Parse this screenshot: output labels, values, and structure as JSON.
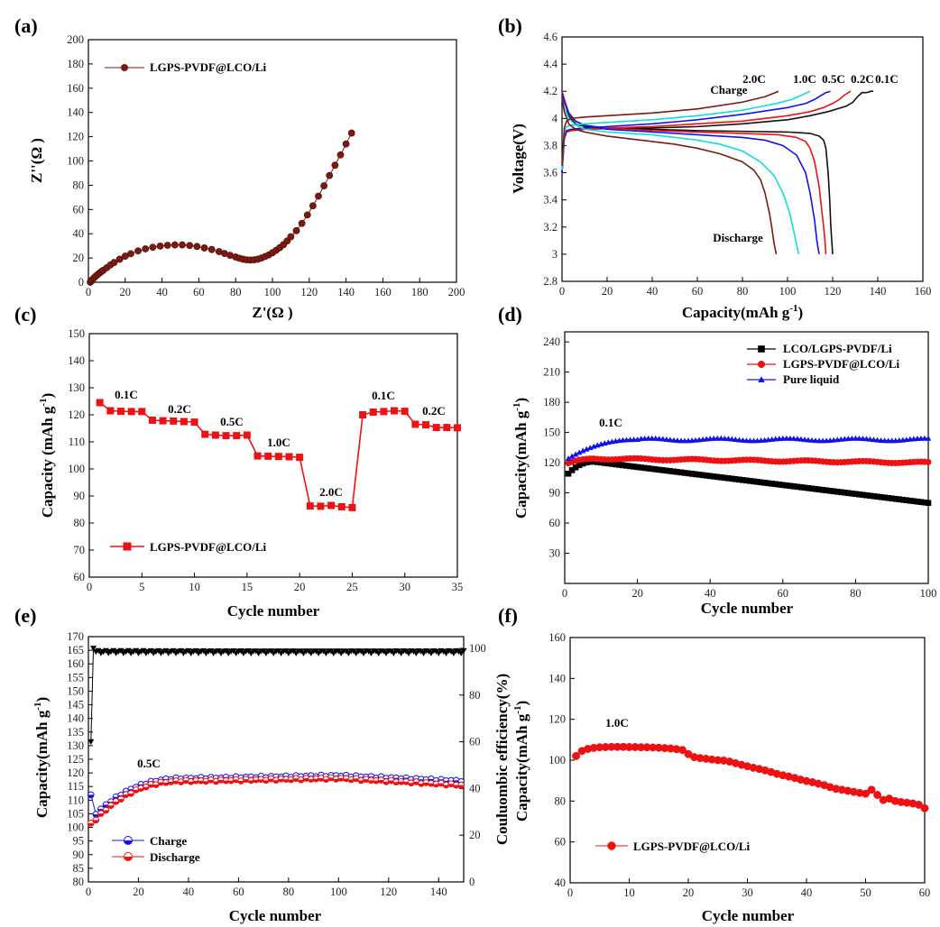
{
  "figure": {
    "panel_labels": [
      "(a)",
      "(b)",
      "(c)",
      "(d)",
      "(e)",
      "(f)"
    ]
  },
  "chart_data": [
    {
      "id": "a",
      "type": "scatter",
      "xlabel": "Z'(Ω )",
      "ylabel": "Z''(Ω )",
      "xlim": [
        0,
        200
      ],
      "ylim": [
        0,
        200
      ],
      "xticks": [
        0,
        20,
        40,
        60,
        80,
        100,
        120,
        140,
        160,
        180,
        200
      ],
      "yticks": [
        0,
        20,
        40,
        60,
        80,
        100,
        120,
        140,
        160,
        180,
        200
      ],
      "legend_position": "top-left",
      "series": [
        {
          "name": "LGPS-PVDF@LCO/Li",
          "color": "#7a1a12",
          "marker": "circle",
          "x": [
            1,
            1.5,
            2,
            3,
            4,
            5,
            6,
            7,
            8,
            10,
            12,
            14,
            17,
            20,
            23,
            27,
            31,
            35,
            39,
            43,
            47,
            51,
            55,
            59,
            63,
            67,
            71,
            74,
            77,
            80,
            82,
            84,
            86,
            88,
            90,
            92,
            94,
            96,
            98,
            100,
            102,
            104,
            106,
            108,
            110,
            113,
            116,
            119,
            122,
            125,
            128,
            131,
            134,
            137,
            140,
            143
          ],
          "y": [
            0,
            0.8,
            2,
            3.5,
            5,
            6.3,
            7.5,
            8.7,
            9.8,
            12,
            14.3,
            16.3,
            19,
            21.5,
            23.5,
            25.8,
            27.5,
            28.8,
            29.8,
            30.5,
            30.8,
            30.8,
            30.3,
            29.5,
            28.3,
            27,
            25.3,
            23.7,
            22.2,
            20.8,
            19.8,
            19,
            18.5,
            18.3,
            18.5,
            19,
            20,
            21.2,
            22.5,
            24.3,
            26.3,
            28.5,
            31,
            34,
            37.5,
            42.5,
            48.5,
            55.5,
            63,
            71,
            79.5,
            88,
            96.5,
            105,
            114,
            123
          ]
        }
      ]
    },
    {
      "id": "b",
      "type": "line",
      "xlabel": "Capacity(mAh g-1)",
      "ylabel": "Voltage(V)",
      "xlim": [
        0,
        160
      ],
      "ylim": [
        2.8,
        4.6
      ],
      "xticks": [
        0,
        20,
        40,
        60,
        80,
        100,
        120,
        140,
        160
      ],
      "yticks": [
        2.8,
        3.0,
        3.2,
        3.4,
        3.6,
        3.8,
        4.0,
        4.2,
        4.4,
        4.6
      ],
      "annotations": [
        "Charge",
        "Discharge",
        "2.0C",
        "1.0C",
        "0.5C",
        "0.2C",
        "0.1C"
      ],
      "series": [
        {
          "name": "0.1C",
          "color": "#111111",
          "charge_x": [
            0,
            1,
            2,
            4,
            10,
            20,
            40,
            60,
            80,
            100,
            110,
            118,
            122,
            126,
            129,
            131,
            133,
            135,
            137,
            138
          ],
          "charge_y": [
            3.6,
            3.85,
            3.9,
            3.91,
            3.92,
            3.925,
            3.93,
            3.94,
            3.96,
            3.99,
            4.02,
            4.05,
            4.07,
            4.09,
            4.12,
            4.16,
            4.19,
            4.19,
            4.2,
            4.2
          ],
          "discharge_x": [
            0,
            1,
            3,
            6,
            10,
            20,
            40,
            60,
            80,
            100,
            110,
            114,
            116,
            117,
            118,
            118.7,
            119.2,
            119.6,
            120
          ],
          "discharge_y": [
            4.2,
            4.14,
            4.02,
            3.96,
            3.94,
            3.93,
            3.92,
            3.91,
            3.905,
            3.9,
            3.89,
            3.87,
            3.84,
            3.78,
            3.6,
            3.4,
            3.2,
            3.1,
            3.0
          ]
        },
        {
          "name": "0.2C",
          "color": "#ee1111",
          "charge_x": [
            0,
            1,
            2,
            4,
            10,
            20,
            40,
            60,
            80,
            100,
            110,
            116,
            120,
            123,
            125,
            127,
            128
          ],
          "charge_y": [
            3.6,
            3.85,
            3.9,
            3.91,
            3.92,
            3.93,
            3.94,
            3.96,
            3.98,
            4.02,
            4.05,
            4.08,
            4.11,
            4.14,
            4.17,
            4.19,
            4.2
          ],
          "discharge_x": [
            0,
            1,
            3,
            6,
            10,
            20,
            40,
            60,
            80,
            96,
            104,
            108,
            110,
            112,
            114,
            115,
            116,
            116.6,
            117
          ],
          "discharge_y": [
            4.2,
            4.14,
            4.04,
            3.98,
            3.95,
            3.93,
            3.91,
            3.9,
            3.89,
            3.88,
            3.86,
            3.83,
            3.78,
            3.68,
            3.5,
            3.35,
            3.2,
            3.1,
            3.0
          ]
        },
        {
          "name": "0.5C",
          "color": "#1111ee",
          "charge_x": [
            0,
            1,
            2,
            4,
            10,
            20,
            40,
            60,
            80,
            100,
            108,
            112,
            115,
            117,
            119
          ],
          "charge_y": [
            3.6,
            3.86,
            3.91,
            3.92,
            3.93,
            3.94,
            3.96,
            3.99,
            4.03,
            4.08,
            4.11,
            4.14,
            4.17,
            4.19,
            4.2
          ],
          "discharge_x": [
            0,
            1,
            3,
            6,
            10,
            20,
            40,
            60,
            80,
            90,
            98,
            104,
            108,
            110,
            112,
            113,
            114
          ],
          "discharge_y": [
            4.18,
            4.12,
            4.04,
            3.98,
            3.95,
            3.92,
            3.9,
            3.88,
            3.86,
            3.84,
            3.8,
            3.73,
            3.6,
            3.45,
            3.25,
            3.1,
            3.0
          ]
        },
        {
          "name": "1.0C",
          "color": "#11dddd",
          "charge_x": [
            0,
            1,
            2,
            4,
            10,
            20,
            40,
            60,
            80,
            95,
            102,
            106,
            110
          ],
          "charge_y": [
            3.62,
            3.9,
            3.94,
            3.95,
            3.96,
            3.97,
            3.99,
            4.02,
            4.06,
            4.11,
            4.14,
            4.17,
            4.2
          ],
          "discharge_x": [
            0,
            1,
            3,
            6,
            10,
            20,
            30,
            40,
            50,
            60,
            70,
            80,
            88,
            94,
            98,
            101,
            103,
            104,
            105
          ],
          "discharge_y": [
            4.15,
            4.08,
            4.0,
            3.95,
            3.92,
            3.9,
            3.89,
            3.88,
            3.86,
            3.84,
            3.81,
            3.76,
            3.68,
            3.58,
            3.45,
            3.3,
            3.15,
            3.07,
            3.0
          ]
        },
        {
          "name": "2.0C",
          "color": "#7a1a12",
          "charge_x": [
            0,
            1,
            2,
            4,
            10,
            20,
            40,
            60,
            80,
            90,
            96
          ],
          "charge_y": [
            3.65,
            3.93,
            3.98,
            4.0,
            4.01,
            4.02,
            4.04,
            4.07,
            4.12,
            4.16,
            4.2
          ],
          "discharge_x": [
            0,
            1,
            3,
            6,
            10,
            20,
            30,
            40,
            50,
            60,
            70,
            80,
            85,
            88,
            90,
            92,
            93,
            94,
            95
          ],
          "discharge_y": [
            4.15,
            4.05,
            3.96,
            3.92,
            3.9,
            3.87,
            3.85,
            3.83,
            3.81,
            3.78,
            3.74,
            3.68,
            3.62,
            3.55,
            3.45,
            3.3,
            3.2,
            3.08,
            3.0
          ]
        }
      ]
    },
    {
      "id": "c",
      "type": "scatter",
      "xlabel": "Cycle number",
      "ylabel": "Capacity (mAh g-1)",
      "xlim": [
        0,
        35
      ],
      "ylim": [
        60,
        150
      ],
      "xticks": [
        0,
        5,
        10,
        15,
        20,
        25,
        30,
        35
      ],
      "yticks": [
        60,
        70,
        80,
        90,
        100,
        110,
        120,
        130,
        140,
        150
      ],
      "legend_position": "bottom-left",
      "annotations": [
        "0.1C",
        "0.2C",
        "0.5C",
        "1.0C",
        "2.0C",
        "0.1C",
        "0.2C"
      ],
      "series": [
        {
          "name": "LGPS-PVDF@LCO/Li",
          "color": "#ee1111",
          "marker": "square",
          "x": [
            1,
            2,
            3,
            4,
            5,
            6,
            7,
            8,
            9,
            10,
            11,
            12,
            13,
            14,
            15,
            16,
            17,
            18,
            19,
            20,
            21,
            22,
            23,
            24,
            25,
            26,
            27,
            28,
            29,
            30,
            31,
            32,
            33,
            34,
            35
          ],
          "y": [
            124.5,
            121.5,
            121.3,
            121.2,
            121.2,
            118,
            117.8,
            117.7,
            117.5,
            117.3,
            112.8,
            112.5,
            112.3,
            112.3,
            112.5,
            104.8,
            104.7,
            104.6,
            104.5,
            104.3,
            86.3,
            86.2,
            86.5,
            86,
            85.7,
            120,
            121,
            121.2,
            121.5,
            121.3,
            116.5,
            116.3,
            115.3,
            115.3,
            115.2
          ]
        }
      ]
    },
    {
      "id": "d",
      "type": "scatter",
      "xlabel": "Cycle number",
      "ylabel": "Capacity(mAh g-1)",
      "xlim": [
        0,
        100
      ],
      "ylim": [
        0,
        250
      ],
      "xticks": [
        0,
        20,
        40,
        60,
        80,
        100
      ],
      "yticks": [
        30,
        60,
        90,
        120,
        150,
        180,
        210,
        240
      ],
      "legend_position": "top-right",
      "annotations": [
        "0.1C"
      ],
      "series": [
        {
          "name": "LCO/LGPS-PVDF/Li",
          "color": "#000000",
          "marker": "square",
          "start": 105,
          "peak": 121,
          "peak_at": 8,
          "end": 80
        },
        {
          "name": "LGPS-PVDF@LCO/Li",
          "color": "#ee1111",
          "marker": "circle",
          "start": 118,
          "peak": 124,
          "peak_at": 8,
          "end": 119
        },
        {
          "name": "Pure liquid",
          "color": "#1111ee",
          "marker": "triangle",
          "start": 122,
          "peak": 143,
          "peak_at": 20,
          "end": 143
        }
      ]
    },
    {
      "id": "e",
      "type": "scatter",
      "xlabel": "Cycle number",
      "ylabel": "Capacity(mAh g-1)",
      "y2label": "Couluombic efficiency(%)",
      "xlim": [
        0,
        150
      ],
      "ylim": [
        80,
        170
      ],
      "y2lim": [
        0,
        105
      ],
      "xticks": [
        0,
        20,
        40,
        60,
        80,
        100,
        120,
        140
      ],
      "yticks": [
        80,
        85,
        90,
        95,
        100,
        105,
        110,
        115,
        120,
        125,
        130,
        135,
        140,
        145,
        150,
        155,
        160,
        165,
        170
      ],
      "y2ticks": [
        0,
        20,
        40,
        60,
        80,
        100
      ],
      "legend_position": "bottom-left",
      "annotations": [
        "0.5C"
      ],
      "series": [
        {
          "name": "Charge",
          "color": "#1111ee",
          "marker": "half-circle",
          "start": 115,
          "dip": 105,
          "plateau": 119,
          "end": 117
        },
        {
          "name": "Discharge",
          "color": "#ee1111",
          "marker": "half-circle",
          "start": 100.5,
          "dip": 103,
          "plateau": 118,
          "end": 115.5
        },
        {
          "name": "Coulombic efficiency",
          "color": "#000000",
          "marker": "triangle-down",
          "axis": "right",
          "start": 60,
          "plateau": 98.5
        }
      ]
    },
    {
      "id": "f",
      "type": "scatter",
      "xlabel": "Cycle number",
      "ylabel": "Capacity(mAh g-1)",
      "xlim": [
        0,
        60
      ],
      "ylim": [
        40,
        160
      ],
      "xticks": [
        0,
        10,
        20,
        30,
        40,
        50,
        60
      ],
      "yticks": [
        40,
        60,
        80,
        100,
        120,
        140,
        160
      ],
      "legend_position": "bottom-left",
      "annotations": [
        "1.0C"
      ],
      "series": [
        {
          "name": "LGPS-PVDF@LCO/Li",
          "color": "#ee1111",
          "marker": "circle",
          "x": [
            1,
            2,
            3,
            4,
            5,
            6,
            7,
            8,
            9,
            10,
            11,
            12,
            13,
            14,
            15,
            16,
            17,
            18,
            19,
            20,
            21,
            22,
            23,
            24,
            25,
            26,
            27,
            28,
            29,
            30,
            31,
            32,
            33,
            34,
            35,
            36,
            37,
            38,
            39,
            40,
            41,
            42,
            43,
            44,
            45,
            46,
            47,
            48,
            49,
            50,
            51,
            52,
            53,
            54,
            55,
            56,
            57,
            58,
            59,
            60
          ],
          "y": [
            102,
            104.5,
            105.5,
            106,
            106.3,
            106.4,
            106.5,
            106.5,
            106.5,
            106.4,
            106.4,
            106.3,
            106.3,
            106.2,
            106.1,
            105.9,
            105.7,
            105.4,
            105,
            103,
            101.5,
            101,
            100.7,
            100.3,
            100,
            99.8,
            99.3,
            98.5,
            97.7,
            97,
            96.3,
            95.7,
            95,
            94.2,
            93.3,
            92.6,
            92,
            91.3,
            90.5,
            89.8,
            89.2,
            88.5,
            87.8,
            86.8,
            86,
            85.5,
            85,
            84.5,
            84,
            83.6,
            85.5,
            83,
            80.5,
            81.2,
            80,
            79.5,
            79.2,
            78.8,
            78.2,
            76.5
          ]
        }
      ]
    }
  ]
}
